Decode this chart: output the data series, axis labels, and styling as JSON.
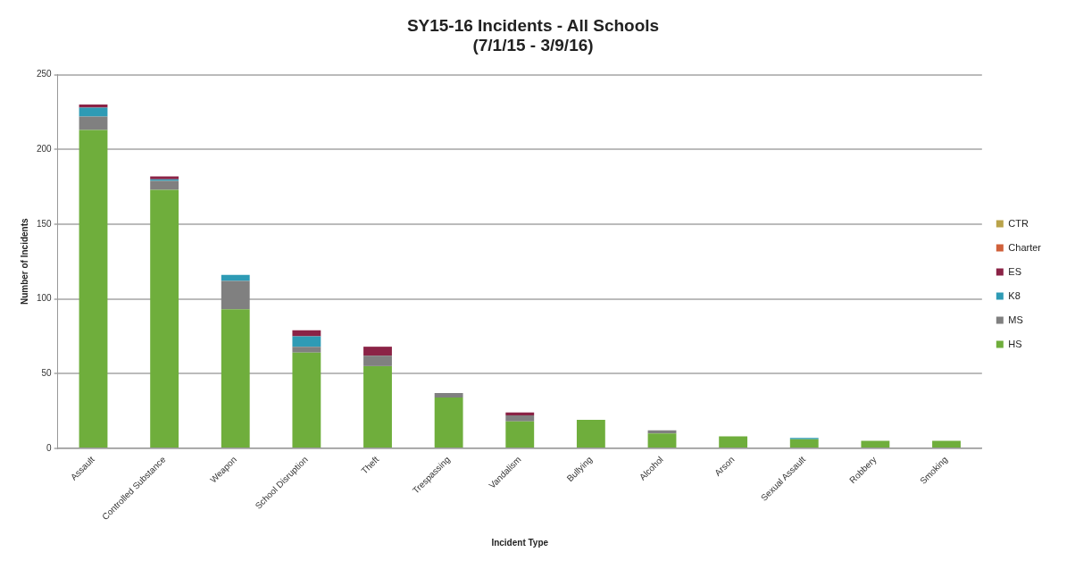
{
  "chart_data": {
    "type": "bar",
    "title": "SY15-16 Incidents - All Schools\n(7/1/15 - 3/9/16)",
    "xlabel": "Incident Type",
    "ylabel": "Number of Incidents",
    "categories": [
      "Assault",
      "Controlled Substance",
      "Weapon",
      "School Disruption",
      "Theft",
      "Trespassing",
      "Vandalism",
      "Bullying",
      "Alcohol",
      "Arson",
      "Sexual Assault",
      "Robbery",
      "Smoking"
    ],
    "stacked": true,
    "ylim": [
      0,
      250
    ],
    "yticks": [
      0,
      50,
      100,
      150,
      200,
      250
    ],
    "grid": "y",
    "legend": "right",
    "series": [
      {
        "name": "HS",
        "color": "#6fae3c",
        "values": [
          213,
          173,
          93,
          64,
          55,
          34,
          18,
          19,
          10,
          8,
          6,
          5,
          5
        ]
      },
      {
        "name": "MS",
        "color": "#808080",
        "values": [
          9,
          6,
          19,
          4,
          7,
          3,
          4,
          0,
          2,
          0,
          0,
          0,
          0
        ]
      },
      {
        "name": "K8",
        "color": "#2e9bb5",
        "values": [
          6,
          1,
          4,
          7,
          0,
          0,
          0,
          0,
          0,
          0,
          1,
          0,
          0
        ]
      },
      {
        "name": "ES",
        "color": "#8b2346",
        "values": [
          2,
          2,
          0,
          4,
          6,
          0,
          2,
          0,
          0,
          0,
          0,
          0,
          0
        ]
      },
      {
        "name": "Charter",
        "color": "#d0603a",
        "values": [
          0,
          0,
          0,
          0,
          0,
          0,
          0,
          0,
          0,
          0,
          0,
          0,
          0
        ]
      },
      {
        "name": "CTR",
        "color": "#b9a34a",
        "values": [
          0,
          0,
          0,
          0,
          0,
          0,
          0,
          0,
          0,
          0,
          0,
          0,
          0
        ]
      }
    ]
  }
}
